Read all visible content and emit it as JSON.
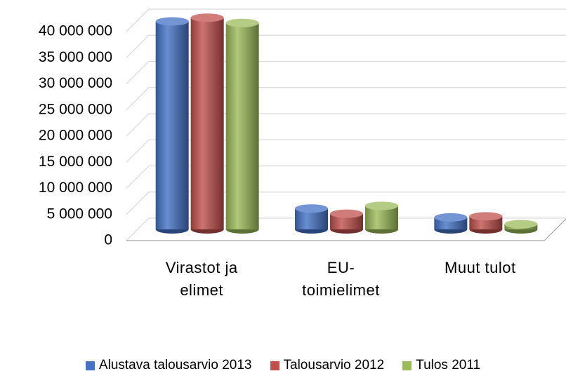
{
  "chart_data": {
    "type": "bar",
    "categories": [
      "Virastot ja elimet",
      "EU-toimielimet",
      "Muut tulot"
    ],
    "series": [
      {
        "name": "Alustava talousarvio 2013",
        "color": "#4472c4",
        "values": [
          39800000,
          4000000,
          2300000
        ]
      },
      {
        "name": "Talousarvio 2012",
        "color": "#c0504d",
        "values": [
          40500000,
          3000000,
          2500000
        ]
      },
      {
        "name": "Tulos 2011",
        "color": "#9bbb59",
        "values": [
          39500000,
          4500000,
          1000000
        ]
      }
    ],
    "ylim": [
      0,
      40000000
    ],
    "yticks": [
      0,
      {
        "value": 5000000,
        "label": "5 000 000"
      },
      {
        "value": 10000000,
        "label": "10 000 000"
      },
      {
        "value": 15000000,
        "label": "15 000 000"
      },
      {
        "value": 20000000,
        "label": "20 000 000"
      },
      {
        "value": 25000000,
        "label": "25 000 000"
      },
      {
        "value": 30000000,
        "label": "30 000 000"
      },
      {
        "value": 35000000,
        "label": "35 000 000"
      },
      {
        "value": 40000000,
        "label": "40 000 000"
      }
    ],
    "grid": true,
    "legend": "bottom"
  }
}
